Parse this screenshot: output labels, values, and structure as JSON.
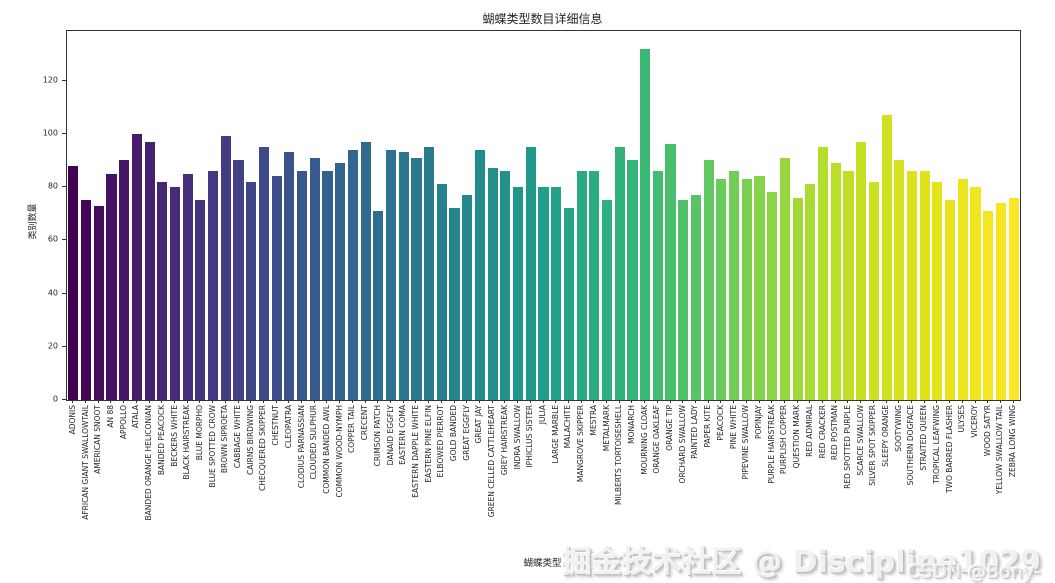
{
  "title": "蝴蝶类型数目详细信息",
  "chart_data": {
    "type": "bar",
    "title": "蝴蝶类型数目详细信息",
    "xlabel": "蝴蝶类型",
    "ylabel": "类别数量",
    "colormap": "viridis",
    "grid": false,
    "legend": false,
    "ylim": [
      0,
      138.6
    ],
    "yticks": [
      0,
      20,
      40,
      60,
      80,
      100,
      120
    ],
    "categories": [
      "ADONIS",
      "AFRICAN GIANT SWALLOWTAIL",
      "AMERICAN SNOOT",
      "AN 88",
      "APPOLLO",
      "ATALA",
      "BANDED ORANGE HELICONIAN",
      "BANDED PEACOCK",
      "BECKERS WHITE",
      "BLACK HAIRSTREAK",
      "BLUE MORPHO",
      "BLUE SPOTTED CROW",
      "BROWN SIPROETA",
      "CABBAGE WHITE",
      "CAIRNS BIRDWING",
      "CHECQUERED SKIPPER",
      "CHESTNUT",
      "CLEOPATRA",
      "CLODIUS PARNASSIAN",
      "CLOUDED SULPHUR",
      "COMMON BANDED AWL",
      "COMMON WOOD-NYMPH",
      "COPPER TAIL",
      "CRECENT",
      "CRIMSON PATCH",
      "DANAID EGGFLY",
      "EASTERN COMA",
      "EASTERN DAPPLE WHITE",
      "EASTERN PINE ELFIN",
      "ELBOWED PIERROT",
      "GOLD BANDED",
      "GREAT EGGFLY",
      "GREAT JAY",
      "GREEN CELLED CATTLEHEART",
      "GREY HAIRSTREAK",
      "INDRA SWALLOW",
      "IPHICLUS SISTER",
      "JULIA",
      "LARGE MARBLE",
      "MALACHITE",
      "MANGROVE SKIPPER",
      "MESTRA",
      "METALMARK",
      "MILBERTS TORTOISESHELL",
      "MONARCH",
      "MOURNING CLOAK",
      "ORANGE OAKLEAF",
      "ORANGE TIP",
      "ORCHARD SWALLOW",
      "PAINTED LADY",
      "PAPER KITE",
      "PEACOCK",
      "PINE WHITE",
      "PIPEVINE SWALLOW",
      "POPINJAY",
      "PURPLE HAIRSTREAK",
      "PURPLISH COPPER",
      "QUESTION MARK",
      "RED ADMIRAL",
      "RED CRACKER",
      "RED POSTMAN",
      "RED SPOTTED PURPLE",
      "SCARCE SWALLOW",
      "SILVER SPOT SKIPPER",
      "SLEEPY ORANGE",
      "SOOTYWING",
      "SOUTHERN DOGFACE",
      "STRAITED QUEEN",
      "TROPICAL LEAFWING",
      "TWO BARRED FLASHER",
      "ULYSES",
      "VICEROY",
      "WOOD SATYR",
      "YELLOW SWALLOW TAIL",
      "ZEBRA LONG WING"
    ],
    "values": [
      88,
      75,
      73,
      85,
      90,
      100,
      97,
      82,
      80,
      85,
      75,
      86,
      99,
      90,
      82,
      95,
      84,
      93,
      86,
      91,
      86,
      89,
      94,
      97,
      71,
      94,
      93,
      91,
      95,
      81,
      72,
      77,
      94,
      87,
      86,
      80,
      95,
      80,
      80,
      72,
      86,
      86,
      75,
      95,
      90,
      132,
      86,
      96,
      75,
      77,
      90,
      83,
      86,
      83,
      84,
      78,
      91,
      76,
      81,
      95,
      89,
      86,
      97,
      82,
      107,
      90,
      86,
      86,
      82,
      75,
      83,
      80,
      71,
      74,
      76
    ]
  },
  "watermark": {
    "primary": "掘金技术社区 @ Discipline1029",
    "secondary": "CSDN @Bony-"
  }
}
